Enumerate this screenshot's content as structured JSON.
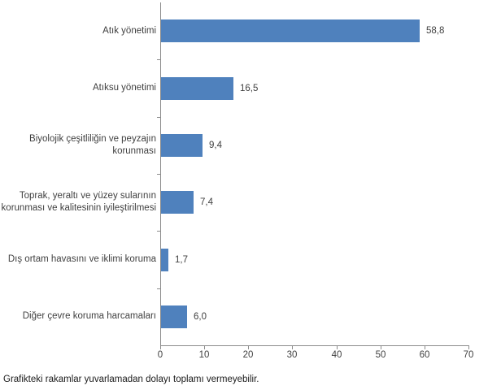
{
  "chart_data": {
    "type": "bar",
    "orientation": "horizontal",
    "title": "",
    "xlabel": "",
    "ylabel": "",
    "grid": false,
    "legend": "none",
    "xlim": [
      0,
      70
    ],
    "x_ticks": [
      0,
      10,
      20,
      30,
      40,
      50,
      60,
      70
    ],
    "x_tick_labels": [
      "0",
      "10",
      "20",
      "30",
      "40",
      "50",
      "60",
      "70"
    ],
    "categories": [
      "Atık yönetimi",
      "Atıksu yönetimi",
      "Biyolojik çeşitliliğin ve peyzajın korunması",
      "Toprak, yeraltı ve yüzey sularının korunması ve kalitesinin iyileştirilmesi",
      "Dış ortam havasını ve iklimi koruma",
      "Diğer çevre koruma harcamaları"
    ],
    "values": [
      58.8,
      16.5,
      9.4,
      7.4,
      1.7,
      6.0
    ],
    "value_labels": [
      "58,8",
      "16,5",
      "9,4",
      "7,4",
      "1,7",
      "6,0"
    ],
    "bar_color": "#4F81BD",
    "axis_color": "#8C8C8C",
    "text_color": "#3F3F3F"
  },
  "footnote": "Grafikteki rakamlar yuvarlamadan dolayı toplamı vermeyebilir."
}
